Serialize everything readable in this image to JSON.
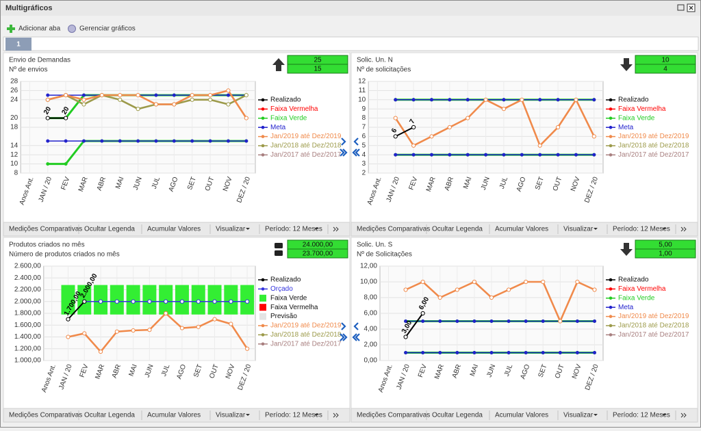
{
  "window": {
    "title": "Multigráficos"
  },
  "toolbar": {
    "add_tab": "Adicionar aba",
    "manage": "Gerenciar gráficos"
  },
  "tabs": [
    "1"
  ],
  "footer_buttons": [
    "Medições Comparativas",
    "Ocultar Legenda",
    "Acumular Valores",
    "Visualizar",
    "Período: 12 Meses"
  ],
  "panels": [
    {
      "title": "Envio de Demandas",
      "subtitle": "Nº de envios",
      "trend": "up",
      "kpi": {
        "values": [
          25,
          15
        ]
      },
      "chart": {
        "type": "line",
        "categories": [
          "Anos Ant.",
          "JAN / 20",
          "FEV",
          "MAR",
          "ABR",
          "MAI",
          "JUN",
          "JUL",
          "AGO",
          "SET",
          "OUT",
          "NOV",
          "DEZ / 20"
        ],
        "ylim": [
          8,
          28
        ],
        "yticks": [
          8,
          10,
          12,
          14,
          18,
          20,
          24,
          26,
          28
        ],
        "grid": true,
        "series": [
          {
            "name": "Realizado",
            "color": "#000000",
            "show_labels": true,
            "values": [
              null,
              20,
              20,
              null,
              null,
              null,
              null,
              null,
              null,
              null,
              null,
              null,
              null
            ]
          },
          {
            "name": "Faixa Vermelha",
            "color": "#ff0000"
          },
          {
            "name": "Faixa Verde",
            "color": "#22cc22",
            "low": [
              null,
              10,
              10,
              15,
              15,
              15,
              15,
              15,
              15,
              15,
              15,
              15,
              15
            ],
            "high": [
              null,
              20,
              20,
              25,
              25,
              25,
              25,
              25,
              25,
              25,
              25,
              25,
              25
            ]
          },
          {
            "name": "Meta",
            "color": "#2222cc",
            "low": [
              null,
              15,
              15,
              15,
              15,
              15,
              15,
              15,
              15,
              15,
              15,
              15,
              15
            ],
            "high": [
              null,
              25,
              25,
              25,
              25,
              25,
              25,
              25,
              25,
              25,
              25,
              25,
              25
            ]
          },
          {
            "name": "Jan/2019 até Dez/2019",
            "color": "#f08a4b",
            "values": [
              null,
              24,
              25,
              24,
              25,
              25,
              25,
              23,
              23,
              25,
              25,
              26,
              20
            ]
          },
          {
            "name": "Jan/2018 até Dez/2018",
            "color": "#9c9a4a",
            "values": [
              null,
              24,
              25,
              23,
              25,
              24,
              22,
              23,
              23,
              24,
              24,
              23,
              25
            ]
          },
          {
            "name": "Jan/2017 até Dez/2017",
            "color": "#a87f7f"
          }
        ]
      }
    },
    {
      "title": "Solic. Un. N",
      "subtitle": "Nº de solicitações",
      "trend": "down",
      "kpi": {
        "values": [
          10,
          4
        ]
      },
      "chart": {
        "type": "line",
        "categories": [
          "Anos Ant.",
          "JAN / 20",
          "FEV",
          "MAR",
          "ABR",
          "MAI",
          "JUN",
          "JUL",
          "AGO",
          "SET",
          "OUT",
          "NOV",
          "DEZ / 20"
        ],
        "ylim": [
          2,
          12
        ],
        "yticks": [
          2,
          3,
          4,
          5,
          6,
          7,
          8,
          9,
          10,
          11,
          12
        ],
        "grid": true,
        "series": [
          {
            "name": "Realizado",
            "color": "#000000",
            "show_labels": true,
            "values": [
              null,
              6,
              7,
              null,
              null,
              null,
              null,
              null,
              null,
              null,
              null,
              null,
              null
            ]
          },
          {
            "name": "Faixa Vermelha",
            "color": "#ff0000"
          },
          {
            "name": "Faixa Verde",
            "color": "#22cc22",
            "low": [
              null,
              4,
              4,
              4,
              4,
              4,
              4,
              4,
              4,
              4,
              4,
              4,
              4
            ],
            "high": [
              null,
              10,
              10,
              10,
              10,
              10,
              10,
              10,
              10,
              10,
              10,
              10,
              10
            ]
          },
          {
            "name": "Meta",
            "color": "#2222cc",
            "low": [
              null,
              4,
              4,
              4,
              4,
              4,
              4,
              4,
              4,
              4,
              4,
              4,
              4
            ],
            "high": [
              null,
              10,
              10,
              10,
              10,
              10,
              10,
              10,
              10,
              10,
              10,
              10,
              10
            ]
          },
          {
            "name": "Jan/2019 até Dez/2019",
            "color": "#f08a4b",
            "values": [
              null,
              8,
              5,
              6,
              7,
              8,
              10,
              9,
              10,
              5,
              7,
              10,
              6
            ]
          },
          {
            "name": "Jan/2018 até Dez/2018",
            "color": "#9c9a4a"
          },
          {
            "name": "Jan/2017 até Dez/2017",
            "color": "#a87f7f"
          }
        ]
      }
    },
    {
      "title": "Produtos criados no mês",
      "subtitle": "Número de produtos criados no mês",
      "trend": "neutral",
      "kpi": {
        "values": [
          24000,
          23700
        ],
        "value_labels": [
          "24.000,00",
          "23.700,00"
        ]
      },
      "chart": {
        "type": "line",
        "band_style": "boxes",
        "categories": [
          "Anos Ant.",
          "JAN / 20",
          "FEV",
          "MAR",
          "ABR",
          "MAI",
          "JUN",
          "JUL",
          "AGO",
          "SET",
          "OUT",
          "NOV",
          "DEZ / 20"
        ],
        "ylim": [
          1000,
          2600
        ],
        "yticks": [
          {
            "value": 1000,
            "label": "1.000,00"
          },
          {
            "value": 1200,
            "label": "1.200,00"
          },
          {
            "value": 1400,
            "label": "1.400,00"
          },
          {
            "value": 1600,
            "label": "1.600,00"
          },
          {
            "value": 1800,
            "label": "1.800,00"
          },
          {
            "value": 2000,
            "label": "2.000,00"
          },
          {
            "value": 2200,
            "label": "2.200,00"
          },
          {
            "value": 2400,
            "label": "2.400,00"
          },
          {
            "value": 2600,
            "label": "2.600,00"
          }
        ],
        "grid": true,
        "series": [
          {
            "name": "Realizado",
            "color": "#000000",
            "show_labels": true,
            "values": [
              null,
              1700,
              2000,
              null,
              null,
              null,
              null,
              null,
              null,
              null,
              null,
              null,
              null
            ],
            "value_labels": [
              null,
              "1.700,00",
              "2.000,00",
              null,
              null,
              null,
              null,
              null,
              null,
              null,
              null,
              null,
              null
            ]
          },
          {
            "name": "Orçado",
            "color": "#3333dd",
            "values": [
              null,
              null,
              2000,
              2000,
              2000,
              2000,
              2000,
              2000,
              2000,
              2000,
              2000,
              2000,
              2000
            ]
          },
          {
            "name": "Faixa Verde",
            "color": "#33ee33",
            "marker": "square",
            "low": [
              null,
              1780,
              1780,
              1780,
              1780,
              1780,
              1780,
              1780,
              1780,
              1780,
              1780,
              1780,
              1780
            ],
            "high": [
              null,
              2280,
              2280,
              2280,
              2280,
              2280,
              2280,
              2280,
              2280,
              2280,
              2280,
              2280,
              2280
            ]
          },
          {
            "name": "Faixa Vermelha",
            "color": "#ff0000",
            "marker": "square"
          },
          {
            "name": "Previsão",
            "color": "#e4e4e4",
            "marker": "square"
          },
          {
            "name": "Jan/2019 até Dez/2019",
            "color": "#f08a4b",
            "values": [
              null,
              1400,
              1460,
              1150,
              1490,
              1510,
              1520,
              1800,
              1550,
              1570,
              1700,
              1620,
              1200
            ]
          },
          {
            "name": "Jan/2018 até Dez/2018",
            "color": "#9c9a4a"
          },
          {
            "name": "Jan/2017 até Dez/2017",
            "color": "#a87f7f"
          }
        ]
      }
    },
    {
      "title": "Solic. Un. S",
      "subtitle": "Nº de Solicitações",
      "trend": "down",
      "kpi": {
        "values": [
          5,
          1
        ],
        "value_labels": [
          "5,00",
          "1,00"
        ]
      },
      "chart": {
        "type": "line",
        "categories": [
          "Anos Ant.",
          "JAN / 20",
          "FEV",
          "MAR",
          "ABR",
          "MAI",
          "JUN",
          "JUL",
          "AGO",
          "SET",
          "OUT",
          "NOV",
          "DEZ / 20"
        ],
        "ylim": [
          0,
          12
        ],
        "yticks": [
          {
            "value": 0,
            "label": "0,00"
          },
          {
            "value": 2,
            "label": "2,00"
          },
          {
            "value": 4,
            "label": "4,00"
          },
          {
            "value": 6,
            "label": "6,00"
          },
          {
            "value": 8,
            "label": "8,00"
          },
          {
            "value": 10,
            "label": "10,00"
          },
          {
            "value": 12,
            "label": "12,00"
          }
        ],
        "grid": true,
        "series": [
          {
            "name": "Realizado",
            "color": "#000000",
            "show_labels": true,
            "values": [
              null,
              3,
              6,
              null,
              null,
              null,
              null,
              null,
              null,
              null,
              null,
              null,
              null
            ],
            "value_labels": [
              null,
              "3,00",
              "6,00",
              null,
              null,
              null,
              null,
              null,
              null,
              null,
              null,
              null,
              null
            ]
          },
          {
            "name": "Faixa Vermelha",
            "color": "#ff0000"
          },
          {
            "name": "Faixa Verde",
            "color": "#22cc22",
            "low": [
              null,
              1,
              1,
              1,
              1,
              1,
              1,
              1,
              1,
              1,
              1,
              1,
              1
            ],
            "high": [
              null,
              5,
              5,
              5,
              5,
              5,
              5,
              5,
              5,
              5,
              5,
              5,
              5
            ]
          },
          {
            "name": "Meta",
            "color": "#2222cc",
            "low": [
              null,
              1,
              1,
              1,
              1,
              1,
              1,
              1,
              1,
              1,
              1,
              1,
              1
            ],
            "high": [
              null,
              5,
              5,
              5,
              5,
              5,
              5,
              5,
              5,
              5,
              5,
              5,
              5
            ]
          },
          {
            "name": "Jan/2019 até Dez/2019",
            "color": "#f08a4b",
            "values": [
              null,
              9,
              10,
              8,
              9,
              10,
              8,
              9,
              10,
              10,
              5,
              10,
              9
            ]
          },
          {
            "name": "Jan/2018 até Dez/2018",
            "color": "#9c9a4a"
          },
          {
            "name": "Jan/2017 até Dez/2017",
            "color": "#a87f7f"
          }
        ]
      }
    }
  ]
}
